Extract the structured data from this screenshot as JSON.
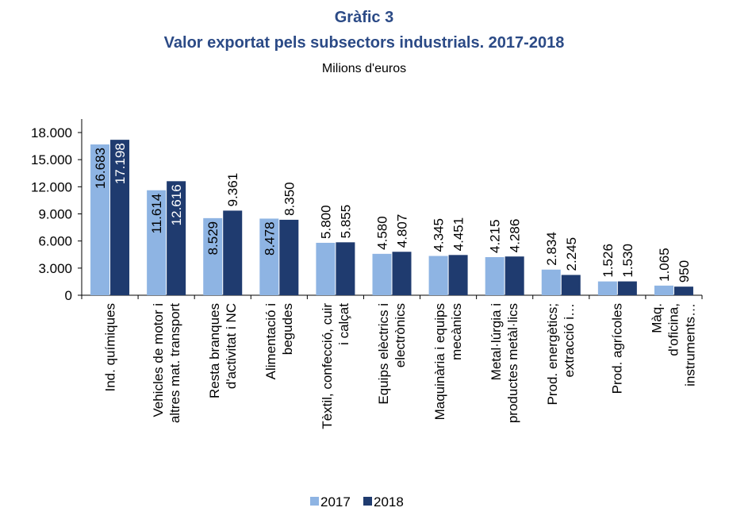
{
  "chart_data": {
    "type": "bar",
    "title": "Gràfic 3",
    "subtitle": "Valor exportat pels subsectors industrials. 2017-2018",
    "unit_label": "Milions d'euros",
    "categories": [
      "Ind. químiques",
      "Vehicles de motor i\naltres mat. transport",
      "Resta branques\nd'activitat i NC",
      "Alimentació i\nbegudes",
      "Tèxtil, confecció, cuir\ni calçat",
      "Equips elèctrics i\nelectrònics",
      "Maquinària i equips\nmecànics",
      "Metal·lúrgia i\nproductes metàl·lics",
      "Prod. energètics;\nextracció i…",
      "Prod. agrícoles",
      "Màq. d'oficina,\ninstruments…"
    ],
    "series": [
      {
        "name": "2017",
        "color": "#8eb4e3",
        "values": [
          16683,
          11614,
          8529,
          8478,
          5800,
          4580,
          4345,
          4215,
          2834,
          1526,
          1065
        ],
        "value_labels": [
          "16.683",
          "11.614",
          "8.529",
          "8.478",
          "5.800",
          "4.580",
          "4.345",
          "4.215",
          "2.834",
          "1.526",
          "1.065"
        ]
      },
      {
        "name": "2018",
        "color": "#1f3b6f",
        "values": [
          17198,
          12616,
          9361,
          8350,
          5855,
          4807,
          4451,
          4286,
          2245,
          1530,
          950
        ],
        "value_labels": [
          "17.198",
          "12.616",
          "9.361",
          "8.350",
          "5.855",
          "4.807",
          "4.451",
          "4.286",
          "2.245",
          "1.530",
          "950"
        ]
      }
    ],
    "ylim": [
      0,
      18000
    ],
    "yticks": [
      0,
      {
        "value": 3000,
        "label": "3.000"
      },
      {
        "value": 6000,
        "label": "6.000"
      },
      {
        "value": 9000,
        "label": "9.000"
      },
      {
        "value": 12000,
        "label": "12.000"
      },
      {
        "value": 15000,
        "label": "15.000"
      },
      {
        "value": 18000,
        "label": "18.000"
      }
    ],
    "legend": "bottom"
  }
}
